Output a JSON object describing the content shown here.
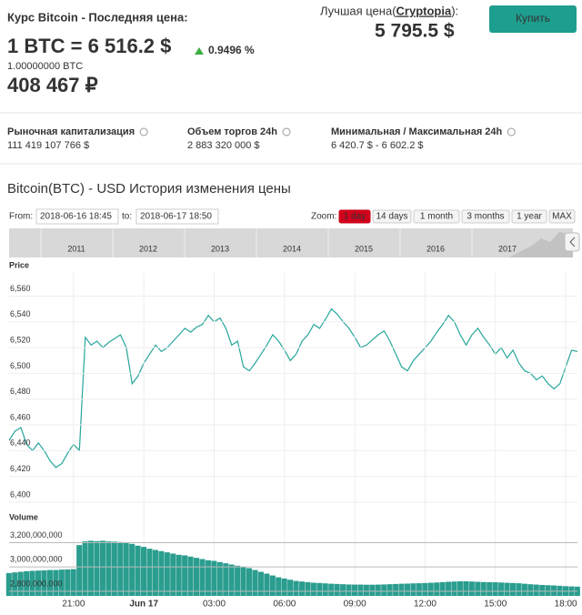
{
  "header": {
    "title": "Курс Bitcoin - Последняя цена:",
    "price_line": "1 BTC = 6 516.2 $",
    "change": "0.9496 %",
    "btc_amount": "1.00000000 BTC",
    "rub_price": "408 467 ₽",
    "best_label": "Лучшая цена(",
    "best_exchange": "Cryptopia",
    "best_suffix": "):",
    "best_price": "5 795.5 $",
    "buy_button": "Купить"
  },
  "stats": [
    {
      "label": "Рыночная капитализация",
      "value": "111 419 107 766 $"
    },
    {
      "label": "Объем торгов 24h",
      "value": "2 883 320 000 $"
    },
    {
      "label": "Минимальная / Максимальная 24h",
      "value": "6 420.7 $ - 6 602.2 $"
    }
  ],
  "history": {
    "title": "Bitcoin(BTC) - USD История изменения цены",
    "from_label": "From:",
    "from": "2018-06-16 18:45",
    "to_label": "to:",
    "to": "2018-06-17 18:50",
    "zoom_label": "Zoom:",
    "zoom": [
      "1 day",
      "14 days",
      "1 month",
      "3 months",
      "1 year",
      "MAX"
    ],
    "navigator_years": [
      "2011",
      "2012",
      "2013",
      "2014",
      "2015",
      "2016",
      "2017"
    ]
  },
  "chart_data": [
    {
      "type": "line",
      "ylabel": "Price",
      "color": "#26a69a",
      "x": [
        18.25,
        18.5,
        18.75,
        19,
        19.25,
        19.5,
        19.75,
        20,
        20.25,
        20.5,
        20.75,
        21,
        21.25,
        21.5,
        21.75,
        22,
        22.25,
        22.5,
        22.75,
        23,
        23.25,
        23.5,
        23.75,
        24,
        24.25,
        24.5,
        24.75,
        25,
        25.25,
        25.5,
        25.75,
        26,
        26.25,
        26.5,
        26.75,
        27,
        27.25,
        27.5,
        27.75,
        28,
        28.25,
        28.5,
        28.75,
        29,
        29.25,
        29.5,
        29.75,
        30,
        30.25,
        30.5,
        30.75,
        31,
        31.25,
        31.5,
        31.75,
        32,
        32.25,
        32.5,
        32.75,
        33,
        33.25,
        33.5,
        33.75,
        34,
        34.25,
        34.5,
        34.75,
        35,
        35.25,
        35.5,
        35.75,
        36,
        36.25,
        36.5,
        36.75,
        37,
        37.25,
        37.5,
        37.75,
        38,
        38.25,
        38.5,
        38.75,
        39,
        39.25,
        39.5,
        39.75,
        40,
        40.25,
        40.5,
        40.75,
        41,
        41.25,
        41.5,
        41.75,
        42,
        42.25,
        42.5
      ],
      "values": [
        6448,
        6455,
        6458,
        6445,
        6440,
        6446,
        6440,
        6432,
        6427,
        6430,
        6438,
        6445,
        6440,
        6528,
        6522,
        6525,
        6520,
        6524,
        6527,
        6530,
        6520,
        6492,
        6498,
        6508,
        6515,
        6522,
        6517,
        6520,
        6525,
        6530,
        6535,
        6532,
        6536,
        6538,
        6545,
        6540,
        6543,
        6535,
        6522,
        6525,
        6505,
        6502,
        6508,
        6515,
        6522,
        6530,
        6525,
        6518,
        6510,
        6515,
        6525,
        6530,
        6538,
        6535,
        6542,
        6550,
        6546,
        6540,
        6535,
        6528,
        6520,
        6522,
        6526,
        6530,
        6533,
        6525,
        6515,
        6505,
        6502,
        6510,
        6515,
        6520,
        6525,
        6532,
        6538,
        6545,
        6540,
        6530,
        6522,
        6530,
        6535,
        6528,
        6522,
        6515,
        6520,
        6512,
        6518,
        6508,
        6502,
        6500,
        6495,
        6498,
        6492,
        6488,
        6492,
        6505,
        6518,
        6517
      ],
      "xlim": [
        18.25,
        42.5
      ],
      "ylim": [
        6400,
        6578
      ],
      "yticks": [
        {
          "value": 6400,
          "label": "6,400"
        },
        {
          "value": 6420,
          "label": "6,420"
        },
        {
          "value": 6440,
          "label": "6,440"
        },
        {
          "value": 6460,
          "label": "6,460"
        },
        {
          "value": 6480,
          "label": "6,480"
        },
        {
          "value": 6500,
          "label": "6,500"
        },
        {
          "value": 6520,
          "label": "6,520"
        },
        {
          "value": 6540,
          "label": "6,540"
        },
        {
          "value": 6560,
          "label": "6,560"
        }
      ],
      "grid": true
    },
    {
      "type": "bar",
      "ylabel": "Volume",
      "color": "#2a9d8f",
      "x": [
        18.25,
        18.5,
        18.75,
        19,
        19.25,
        19.5,
        19.75,
        20,
        20.25,
        20.5,
        20.75,
        21,
        21.25,
        21.5,
        21.75,
        22,
        22.25,
        22.5,
        22.75,
        23,
        23.25,
        23.5,
        23.75,
        24,
        24.25,
        24.5,
        24.75,
        25,
        25.25,
        25.5,
        25.75,
        26,
        26.25,
        26.5,
        26.75,
        27,
        27.25,
        27.5,
        27.75,
        28,
        28.25,
        28.5,
        28.75,
        29,
        29.25,
        29.5,
        29.75,
        30,
        30.25,
        30.5,
        30.75,
        31,
        31.25,
        31.5,
        31.75,
        32,
        32.25,
        32.5,
        32.75,
        33,
        33.25,
        33.5,
        33.75,
        34,
        34.25,
        34.5,
        34.75,
        35,
        35.25,
        35.5,
        35.75,
        36,
        36.25,
        36.5,
        36.75,
        37,
        37.25,
        37.5,
        37.75,
        38,
        38.25,
        38.5,
        38.75,
        39,
        39.25,
        39.5,
        39.75,
        40,
        40.25,
        40.5,
        40.75,
        41,
        41.25,
        41.5,
        41.75,
        42,
        42.25,
        42.5
      ],
      "values": [
        2950000000,
        2955000000,
        2960000000,
        2965000000,
        2968000000,
        2970000000,
        2972000000,
        2975000000,
        2975000000,
        2978000000,
        2980000000,
        2982000000,
        3180000000,
        3210000000,
        3215000000,
        3212000000,
        3215000000,
        3210000000,
        3208000000,
        3205000000,
        3200000000,
        3190000000,
        3175000000,
        3165000000,
        3150000000,
        3140000000,
        3130000000,
        3120000000,
        3110000000,
        3100000000,
        3095000000,
        3085000000,
        3075000000,
        3065000000,
        3055000000,
        3050000000,
        3040000000,
        3030000000,
        3020000000,
        3010000000,
        3000000000,
        2990000000,
        2975000000,
        2960000000,
        2945000000,
        2930000000,
        2915000000,
        2905000000,
        2895000000,
        2885000000,
        2880000000,
        2875000000,
        2870000000,
        2868000000,
        2865000000,
        2862000000,
        2860000000,
        2858000000,
        2856000000,
        2855000000,
        2855000000,
        2854000000,
        2854000000,
        2855000000,
        2856000000,
        2858000000,
        2860000000,
        2862000000,
        2863000000,
        2865000000,
        2866000000,
        2868000000,
        2870000000,
        2872000000,
        2875000000,
        2878000000,
        2880000000,
        2882000000,
        2882000000,
        2880000000,
        2878000000,
        2876000000,
        2875000000,
        2874000000,
        2872000000,
        2870000000,
        2868000000,
        2866000000,
        2862000000,
        2858000000,
        2855000000,
        2852000000,
        2850000000,
        2848000000,
        2845000000,
        2842000000,
        2840000000,
        2838000000
      ],
      "xlim": [
        18.25,
        42.5
      ],
      "ylim": [
        2762000000,
        3338000000
      ],
      "yticks": [
        {
          "value": 2800000000,
          "label": "2,800,000,000"
        },
        {
          "value": 3000000000,
          "label": "3,000,000,000"
        },
        {
          "value": 3200000000,
          "label": "3,200,000,000"
        }
      ],
      "xticks": [
        {
          "value": 21,
          "label": "21:00"
        },
        {
          "value": 24,
          "label": "Jun 17"
        },
        {
          "value": 27,
          "label": "03:00"
        },
        {
          "value": 30,
          "label": "06:00"
        },
        {
          "value": 33,
          "label": "09:00"
        },
        {
          "value": 36,
          "label": "12:00"
        },
        {
          "value": 39,
          "label": "15:00"
        },
        {
          "value": 42,
          "label": "18:00"
        }
      ],
      "grid": true
    }
  ]
}
